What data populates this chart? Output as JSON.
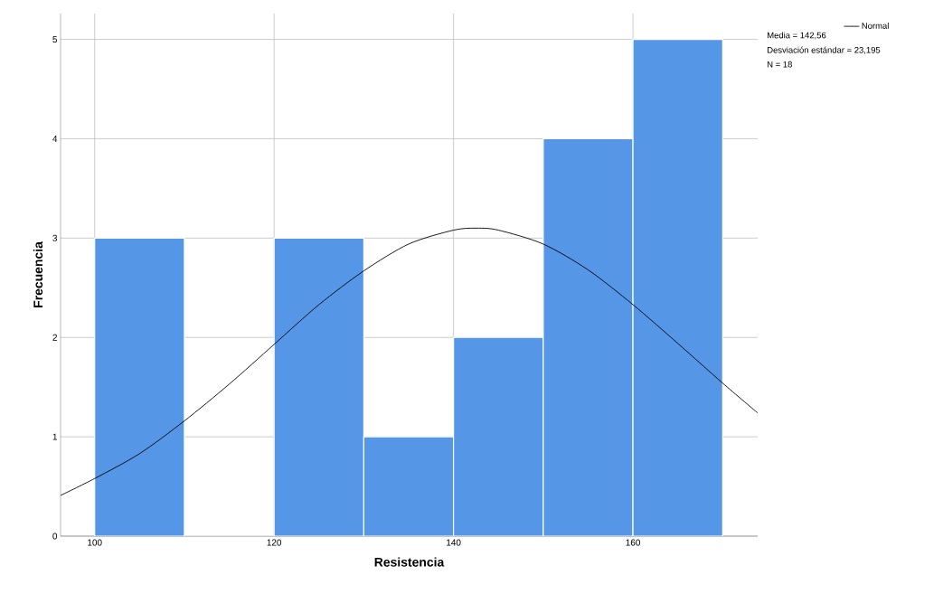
{
  "chart_data": {
    "type": "histogram",
    "xlabel": "Resistencia",
    "ylabel": "Frecuencia",
    "bins": [
      100,
      110,
      120,
      130,
      140,
      150,
      160,
      170
    ],
    "values": [
      3,
      0,
      3,
      1,
      2,
      4,
      5
    ],
    "color": "#5596e6",
    "series": [
      {
        "type": "line",
        "name": "Normal",
        "color": "#000000",
        "x": [
          96.2,
          100,
          105,
          110,
          115,
          120,
          125,
          130,
          135,
          140,
          142.56,
          145,
          150,
          155,
          160,
          165,
          170,
          173.9
        ],
        "values": [
          0.41,
          0.58,
          0.83,
          1.16,
          1.53,
          1.93,
          2.33,
          2.67,
          2.94,
          3.08,
          3.1,
          3.08,
          2.94,
          2.68,
          2.33,
          1.94,
          1.54,
          1.24
        ]
      }
    ],
    "annotations": [
      "Media = 142,56",
      "Desviación estándar = 23,195",
      "N = 18"
    ],
    "xlim": [
      96.2,
      173.9
    ],
    "ylim": [
      0,
      5.26
    ],
    "xticks": [
      100,
      120,
      140,
      160
    ],
    "yticks": [
      0,
      1,
      2,
      3,
      4,
      5
    ],
    "grid": true,
    "legend": "top right"
  }
}
